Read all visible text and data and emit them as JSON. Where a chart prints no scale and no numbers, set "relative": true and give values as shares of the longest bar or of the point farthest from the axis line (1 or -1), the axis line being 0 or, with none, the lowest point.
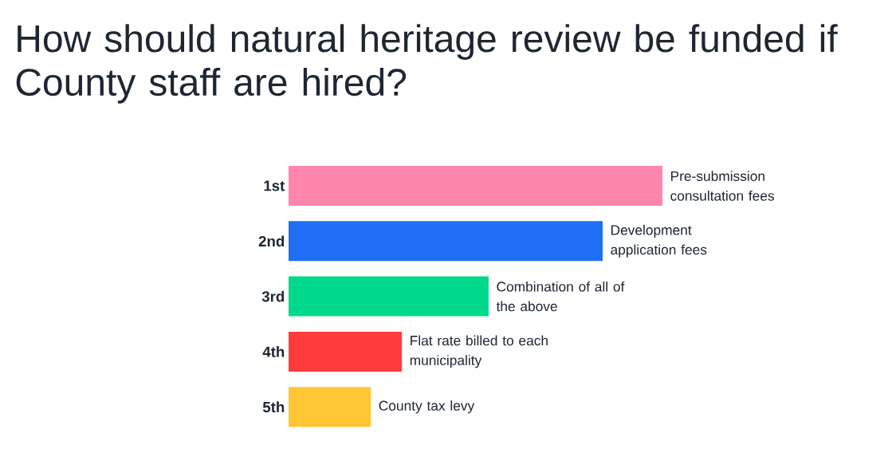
{
  "chart_data": {
    "type": "bar",
    "orientation": "horizontal",
    "relative": true,
    "title": "How should natural heritage review be funded if County staff are hired?",
    "categories": [
      "1st",
      "2nd",
      "3rd",
      "4th",
      "5th"
    ],
    "values": [
      1,
      0.84,
      0.535,
      0.303,
      0.22
    ],
    "colors": [
      "#ff85ad",
      "#1f6ef5",
      "#00d98b",
      "#ff3b3b",
      "#ffc533"
    ],
    "annotations": [
      {
        "text": "Pre-submission consultation fees",
        "x": 1,
        "y": "1st"
      },
      {
        "text": "Development application fees",
        "x": 0.84,
        "y": "2nd"
      },
      {
        "text": "Combination of all of the above",
        "x": 0.535,
        "y": "3rd"
      },
      {
        "text": "Flat rate billed to each municipality",
        "x": 0.303,
        "y": "4th"
      },
      {
        "text": "County tax levy",
        "x": 0.22,
        "y": "5th"
      }
    ]
  }
}
